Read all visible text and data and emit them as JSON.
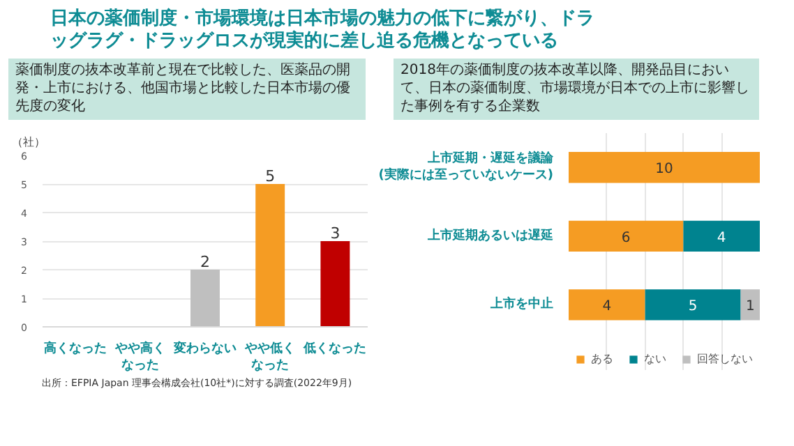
{
  "chart_data": [
    {
      "type": "bar",
      "title": "日本の薬価制度・市場環境は日本市場の魅力の低下に繋がり、ドラッグラグ・ドラッグロスが現実的に差し迫る危機となっている",
      "subtitle": "薬価制度の抜本改革前と現在で比較した、医薬品の開発・上市における、他国市場と比較した日本市場の優先度の変化",
      "ylabel": "（社）",
      "categories": [
        "高くなった",
        "やや高くなった",
        "変わらない",
        "やや低くなった",
        "低くなった"
      ],
      "values": [
        0,
        0,
        2,
        5,
        3
      ],
      "colors": [
        "#bfbfbf",
        "#bfbfbf",
        "#bfbfbf",
        "#f59c23",
        "#c00000"
      ],
      "value_labels": [
        null,
        null,
        "2",
        "5",
        "3"
      ],
      "ylim": [
        0,
        6
      ],
      "yticks": [
        0,
        1,
        2,
        3,
        4,
        5,
        6
      ],
      "grid": "y",
      "annotations": [
        "出所：EFPIA Japan 理事会構成会社(10社*)に対する調査(2022年9月)"
      ]
    },
    {
      "type": "bar",
      "orientation": "horizontal",
      "stacked": true,
      "title": "2018年の薬価制度の抜本改革以降、開発品目において、日本の薬価制度、市場環境が日本での上市に影響した事例を有する企業数",
      "categories": [
        "上市延期・遅延を議論(実際には至っていないケース)",
        "上市延期あるいは遅延",
        "上市を中止"
      ],
      "series": [
        {
          "name": "ある",
          "color": "#f59c23",
          "values": [
            10,
            6,
            4
          ],
          "value_labels": [
            "10",
            "6",
            "4"
          ]
        },
        {
          "name": "ない",
          "color": "#00838f",
          "values": [
            0,
            4,
            5
          ],
          "value_labels": [
            null,
            "4",
            "5"
          ]
        },
        {
          "name": "回答しない",
          "color": "#bfbfbf",
          "values": [
            0,
            0,
            1
          ],
          "value_labels": [
            null,
            null,
            "1"
          ]
        }
      ],
      "xlim": [
        0,
        10
      ],
      "xticks": [
        {
          "value": 2,
          "label": null
        },
        {
          "value": 4,
          "label": null
        },
        {
          "value": 6,
          "label": null
        },
        {
          "value": 8,
          "label": null
        }
      ],
      "grid": "x",
      "tick_labels": "y",
      "legend": "bottom"
    }
  ]
}
